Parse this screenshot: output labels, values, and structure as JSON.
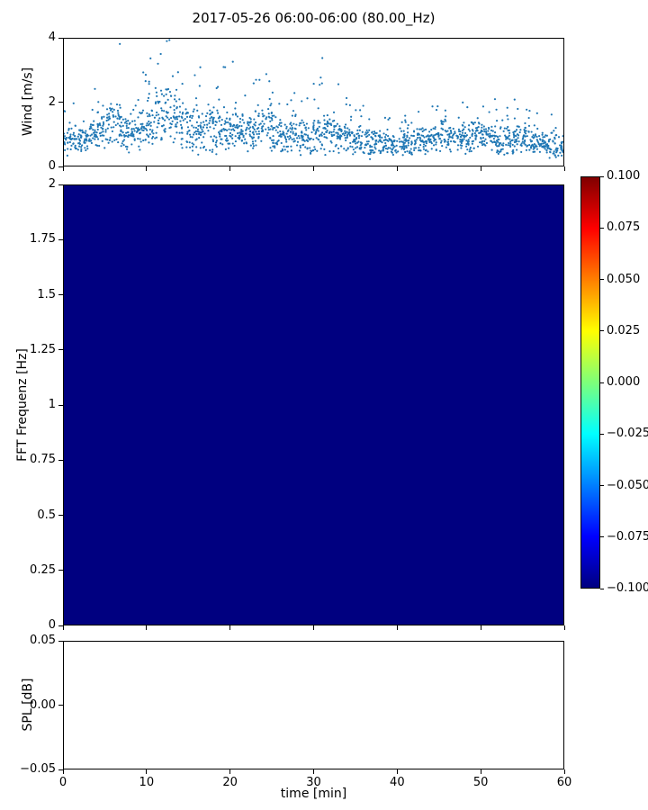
{
  "figure": {
    "title": "2017-05-26 06:00-06:00 (80.00_Hz)",
    "background": "#ffffff"
  },
  "chart_data": [
    {
      "type": "scatter",
      "name": "wind-speed-timeseries",
      "ylabel": "Wind [m/s]",
      "xlabel": "",
      "xlim": [
        0,
        60
      ],
      "ylim": [
        0,
        4
      ],
      "yticks": [
        0,
        2,
        4
      ],
      "ytick_labels": [
        "0",
        "2",
        "4"
      ],
      "marker_color": "#1f77b4",
      "marker_size_px": 1.1,
      "points_per_minute": 32,
      "note": "dense ~1s wind-speed samples; values approximated by per-minute envelope read from the plot",
      "envelope_per_minute": {
        "base": [
          0.8,
          0.9,
          0.8,
          1.0,
          1.1,
          1.3,
          1.4,
          1.0,
          1.0,
          1.2,
          1.4,
          1.5,
          1.6,
          1.5,
          1.3,
          1.2,
          1.1,
          1.2,
          1.0,
          1.1,
          1.2,
          1.0,
          1.1,
          1.2,
          1.3,
          1.0,
          0.9,
          1.0,
          0.9,
          0.9,
          1.0,
          1.1,
          1.0,
          0.9,
          0.8,
          0.8,
          0.7,
          0.8,
          0.7,
          0.7,
          0.8,
          0.7,
          0.8,
          0.8,
          0.9,
          1.0,
          0.9,
          0.9,
          0.9,
          1.0,
          0.9,
          0.9,
          0.8,
          0.8,
          0.9,
          0.8,
          0.7,
          0.7,
          0.7,
          0.6
        ],
        "spread": [
          0.5,
          0.5,
          0.5,
          0.6,
          0.6,
          0.8,
          0.9,
          0.7,
          0.6,
          0.8,
          0.9,
          1.0,
          1.0,
          1.0,
          0.9,
          0.8,
          0.8,
          0.8,
          0.7,
          0.8,
          0.8,
          0.7,
          0.7,
          0.8,
          0.9,
          0.7,
          0.6,
          0.7,
          0.6,
          0.6,
          0.7,
          0.8,
          0.7,
          0.6,
          0.5,
          0.5,
          0.5,
          0.5,
          0.4,
          0.4,
          0.5,
          0.4,
          0.5,
          0.5,
          0.5,
          0.6,
          0.5,
          0.5,
          0.6,
          0.6,
          0.5,
          0.5,
          0.5,
          0.5,
          0.5,
          0.5,
          0.4,
          0.4,
          0.5,
          0.4
        ],
        "max": [
          1.9,
          2.1,
          1.8,
          2.5,
          2.6,
          3.6,
          4.0,
          2.8,
          2.4,
          3.2,
          3.6,
          3.9,
          4.0,
          3.9,
          3.5,
          3.3,
          3.4,
          3.3,
          2.6,
          3.2,
          3.4,
          2.9,
          3.0,
          3.2,
          3.8,
          2.6,
          2.4,
          2.9,
          2.5,
          2.3,
          2.8,
          3.5,
          2.9,
          2.3,
          2.0,
          1.9,
          1.8,
          2.0,
          1.6,
          1.7,
          1.9,
          1.6,
          1.9,
          2.0,
          2.2,
          2.3,
          2.1,
          2.0,
          2.3,
          2.5,
          2.2,
          2.1,
          2.0,
          1.9,
          2.1,
          1.9,
          1.7,
          1.6,
          1.8,
          1.5
        ]
      }
    },
    {
      "type": "heatmap",
      "name": "fft-spectrogram",
      "ylabel": "FFT Frequenz [Hz]",
      "xlim": [
        0,
        60
      ],
      "ylim": [
        0,
        2
      ],
      "yticks": [
        2,
        1.75,
        1.5,
        1.25,
        1,
        0.75,
        0.5,
        0.25,
        0
      ],
      "ytick_labels": [
        "2",
        "1.75",
        "1.5",
        "1.25",
        "1",
        "0.75",
        "0.5",
        "0.25",
        "0"
      ],
      "uniform_value": -0.1,
      "fill_color": "#000080",
      "note": "entire mesh at colormap minimum (solid navy)",
      "colorbar": {
        "vmin": -0.1,
        "vmax": 0.1,
        "colormap": "jet",
        "tick_labels": [
          "0.100",
          "0.075",
          "0.050",
          "0.025",
          "0.000",
          "−0.025",
          "−0.050",
          "−0.075",
          "−0.100"
        ],
        "gradient_stops": [
          {
            "pos": 0.0,
            "color": "#000080"
          },
          {
            "pos": 0.125,
            "color": "#0000ff"
          },
          {
            "pos": 0.375,
            "color": "#00ffff"
          },
          {
            "pos": 0.5,
            "color": "#7dff7a"
          },
          {
            "pos": 0.625,
            "color": "#ffff00"
          },
          {
            "pos": 0.875,
            "color": "#ff0000"
          },
          {
            "pos": 1.0,
            "color": "#800000"
          }
        ]
      }
    },
    {
      "type": "line",
      "name": "spl-timeseries",
      "ylabel": "SPL [dB]",
      "xlabel": "time [min]",
      "xlim": [
        0,
        60
      ],
      "ylim": [
        -0.05,
        0.05
      ],
      "yticks": [
        0.05,
        0,
        -0.05
      ],
      "ytick_labels": [
        "0.05",
        "0.00",
        "−0.05"
      ],
      "xticks": [
        0,
        10,
        20,
        30,
        40,
        50,
        60
      ],
      "xtick_labels": [
        "0",
        "10",
        "20",
        "30",
        "40",
        "50",
        "60"
      ],
      "x": [],
      "values": [],
      "note": "axes empty — no SPL curve drawn"
    }
  ]
}
